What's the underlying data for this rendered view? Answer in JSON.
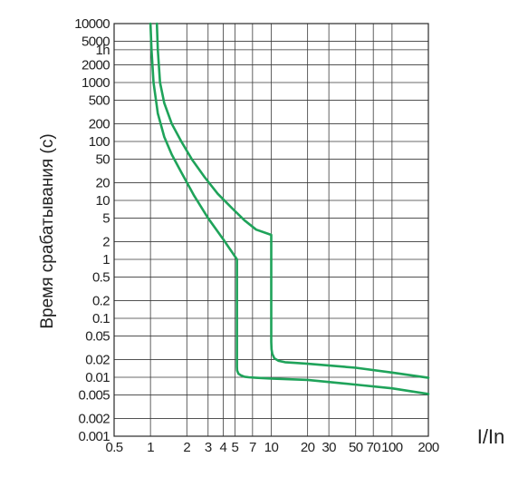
{
  "chart_data": {
    "type": "line",
    "title": "",
    "ylabel": "Время срабатывания (с)",
    "xlabel": "I/In",
    "x_scale": "log",
    "y_scale": "log",
    "xlim": [
      0.5,
      200
    ],
    "ylim": [
      0.001,
      10000
    ],
    "grid": true,
    "line_color": "#1fa35a",
    "x_ticks": [
      {
        "value": 0.5,
        "label": "0.5"
      },
      {
        "value": 1,
        "label": "1"
      },
      {
        "value": 2,
        "label": "2"
      },
      {
        "value": 3,
        "label": "3"
      },
      {
        "value": 4,
        "label": "4"
      },
      {
        "value": 5,
        "label": "5"
      },
      {
        "value": 7,
        "label": "7"
      },
      {
        "value": 10,
        "label": "10"
      },
      {
        "value": 20,
        "label": "20"
      },
      {
        "value": 30,
        "label": "30"
      },
      {
        "value": 50,
        "label": "50"
      },
      {
        "value": 70,
        "label": "70"
      },
      {
        "value": 100,
        "label": "100"
      },
      {
        "value": 200,
        "label": "200"
      }
    ],
    "y_ticks": [
      {
        "value": 10000,
        "label": "10000"
      },
      {
        "value": 5000,
        "label": "5000"
      },
      {
        "value": 3600,
        "label": "1h"
      },
      {
        "value": 2000,
        "label": "2000"
      },
      {
        "value": 1000,
        "label": "1000"
      },
      {
        "value": 500,
        "label": "500"
      },
      {
        "value": 200,
        "label": "200"
      },
      {
        "value": 100,
        "label": "100"
      },
      {
        "value": 50,
        "label": "50"
      },
      {
        "value": 20,
        "label": "20"
      },
      {
        "value": 10,
        "label": "10"
      },
      {
        "value": 5,
        "label": "5"
      },
      {
        "value": 2,
        "label": "2"
      },
      {
        "value": 1,
        "label": "1"
      },
      {
        "value": 0.5,
        "label": "0.5"
      },
      {
        "value": 0.2,
        "label": "0.2"
      },
      {
        "value": 0.1,
        "label": "0.1"
      },
      {
        "value": 0.05,
        "label": "0.05"
      },
      {
        "value": 0.02,
        "label": "0.02"
      },
      {
        "value": 0.01,
        "label": "0.01"
      },
      {
        "value": 0.005,
        "label": "0.005"
      },
      {
        "value": 0.002,
        "label": "0.002"
      },
      {
        "value": 0.001,
        "label": "0.001"
      }
    ],
    "series": [
      {
        "x": [
          1.0,
          1.02,
          1.06,
          1.15,
          1.3,
          1.5,
          1.8,
          2.3,
          3.0,
          4.0,
          5.2,
          5.2,
          5.22,
          5.35,
          5.6,
          6.0,
          6.5,
          7.5,
          10,
          20,
          50,
          100,
          200
        ],
        "y": [
          10000,
          3600,
          1000,
          300,
          120,
          60,
          30,
          12,
          5,
          2.2,
          1.0,
          0.015,
          0.013,
          0.0115,
          0.0108,
          0.0102,
          0.01,
          0.0098,
          0.0095,
          0.009,
          0.0075,
          0.0065,
          0.0052
        ]
      },
      {
        "x": [
          1.13,
          1.15,
          1.2,
          1.3,
          1.5,
          1.8,
          2.2,
          2.8,
          3.6,
          4.7,
          6.0,
          7.5,
          10,
          10,
          10.05,
          10.2,
          10.6,
          11.5,
          13,
          16,
          20,
          50,
          100,
          200
        ],
        "y": [
          10000,
          3600,
          1000,
          450,
          200,
          100,
          50,
          25,
          13,
          7.5,
          4.6,
          3.2,
          2.6,
          0.04,
          0.03,
          0.025,
          0.021,
          0.019,
          0.018,
          0.0175,
          0.017,
          0.0145,
          0.012,
          0.0098
        ]
      }
    ]
  }
}
